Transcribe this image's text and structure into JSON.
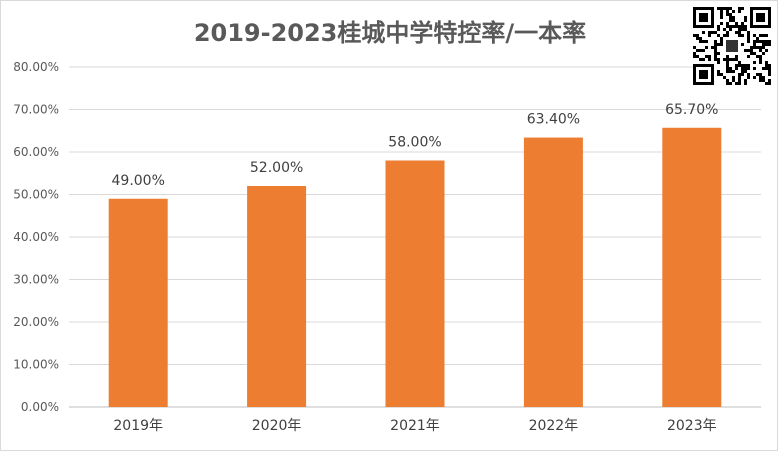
{
  "chart_data": {
    "type": "bar",
    "title": "2019-2023桂城中学特控率/一本率",
    "categories": [
      "2019年",
      "2020年",
      "2021年",
      "2022年",
      "2023年"
    ],
    "values": [
      49.0,
      52.0,
      58.0,
      63.4,
      65.7
    ],
    "data_labels": [
      "49.00%",
      "52.00%",
      "58.00%",
      "63.40%",
      "65.70%"
    ],
    "y_ticks": [
      "0.00%",
      "10.00%",
      "20.00%",
      "30.00%",
      "40.00%",
      "50.00%",
      "60.00%",
      "70.00%",
      "80.00%"
    ],
    "ylim": [
      0,
      80
    ],
    "xlabel": "",
    "ylabel": "",
    "grid": true,
    "bar_color": "#ED7D31",
    "grid_color": "#d9d9d9"
  }
}
